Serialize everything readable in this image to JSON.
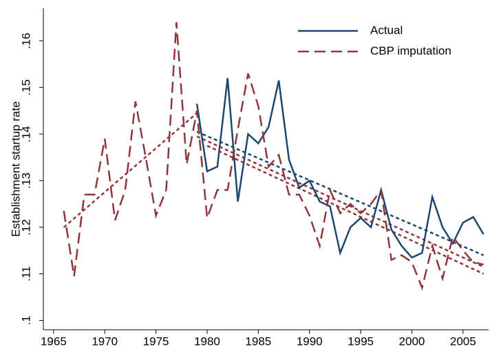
{
  "chart_data": {
    "type": "line",
    "ylabel": "Establishment startup rate",
    "xlim": [
      1964,
      2007.5
    ],
    "xticks": [
      1965,
      1970,
      1975,
      1980,
      1985,
      1990,
      1995,
      2000,
      2005
    ],
    "ylim": [
      0.098,
      0.167
    ],
    "yticks": [
      {
        "value": 0.1,
        "label": ".1"
      },
      {
        "value": 0.11,
        "label": ".11"
      },
      {
        "value": 0.12,
        "label": ".12"
      },
      {
        "value": 0.13,
        "label": ".13"
      },
      {
        "value": 0.14,
        "label": ".14"
      },
      {
        "value": 0.15,
        "label": ".15"
      },
      {
        "value": 0.16,
        "label": ".16"
      }
    ],
    "legend": "top-right",
    "series": [
      {
        "name": "Actual",
        "color": "#1a476f",
        "dash": "solid",
        "x": [
          1979,
          1980,
          1981,
          1982,
          1983,
          1984,
          1985,
          1986,
          1987,
          1988,
          1989,
          1990,
          1991,
          1992,
          1993,
          1994,
          1995,
          1996,
          1997,
          1998,
          1999,
          2000,
          2001,
          2002,
          2003,
          2004,
          2005,
          2006,
          2007
        ],
        "values": [
          0.1465,
          0.132,
          0.133,
          0.152,
          0.1255,
          0.14,
          0.138,
          0.1415,
          0.1515,
          0.1345,
          0.1285,
          0.13,
          0.1255,
          0.1245,
          0.1145,
          0.12,
          0.122,
          0.12,
          0.128,
          0.1195,
          0.116,
          0.1135,
          0.1145,
          0.1265,
          0.12,
          0.1165,
          0.121,
          0.1222,
          0.1185
        ]
      },
      {
        "name": "CBP imputation",
        "color": "#90353b",
        "dash": "long",
        "x": [
          1966,
          1967,
          1968,
          1969,
          1970,
          1971,
          1972,
          1973,
          1974,
          1975,
          1976,
          1977,
          1978,
          1979,
          1980,
          1981,
          1982,
          1983,
          1984,
          1985,
          1986,
          1987,
          1988,
          1989,
          1990,
          1991,
          1992,
          1993,
          1994,
          1995,
          1996,
          1997,
          1998,
          1999,
          2000,
          2001,
          2002,
          2003,
          2004,
          2005,
          2006,
          2007
        ],
        "values": [
          0.1235,
          0.1095,
          0.127,
          0.127,
          0.139,
          0.1215,
          0.128,
          0.147,
          0.135,
          0.1225,
          0.128,
          0.164,
          0.1335,
          0.145,
          0.122,
          0.128,
          0.128,
          0.141,
          0.153,
          0.146,
          0.133,
          0.1355,
          0.127,
          0.127,
          0.1225,
          0.116,
          0.128,
          0.123,
          0.125,
          0.123,
          0.125,
          0.128,
          0.113,
          0.114,
          0.1125,
          0.107,
          0.116,
          0.109,
          0.118,
          0.115,
          0.1125,
          0.112
        ]
      }
    ],
    "trend_lines": [
      {
        "color": "#90353b",
        "dash": "short",
        "x": [
          1966,
          1979
        ],
        "values": [
          0.12,
          0.1445
        ]
      },
      {
        "color": "#1a476f",
        "dash": "short",
        "x": [
          1979,
          2007
        ],
        "values": [
          0.1405,
          0.114
        ]
      },
      {
        "color": "#90353b",
        "dash": "short",
        "x": [
          1980,
          2007
        ],
        "values": [
          0.1375,
          0.11
        ]
      },
      {
        "color": "#90353b",
        "dash": "short",
        "x": [
          1979,
          2007
        ],
        "values": [
          0.1395,
          0.1115
        ]
      }
    ]
  }
}
